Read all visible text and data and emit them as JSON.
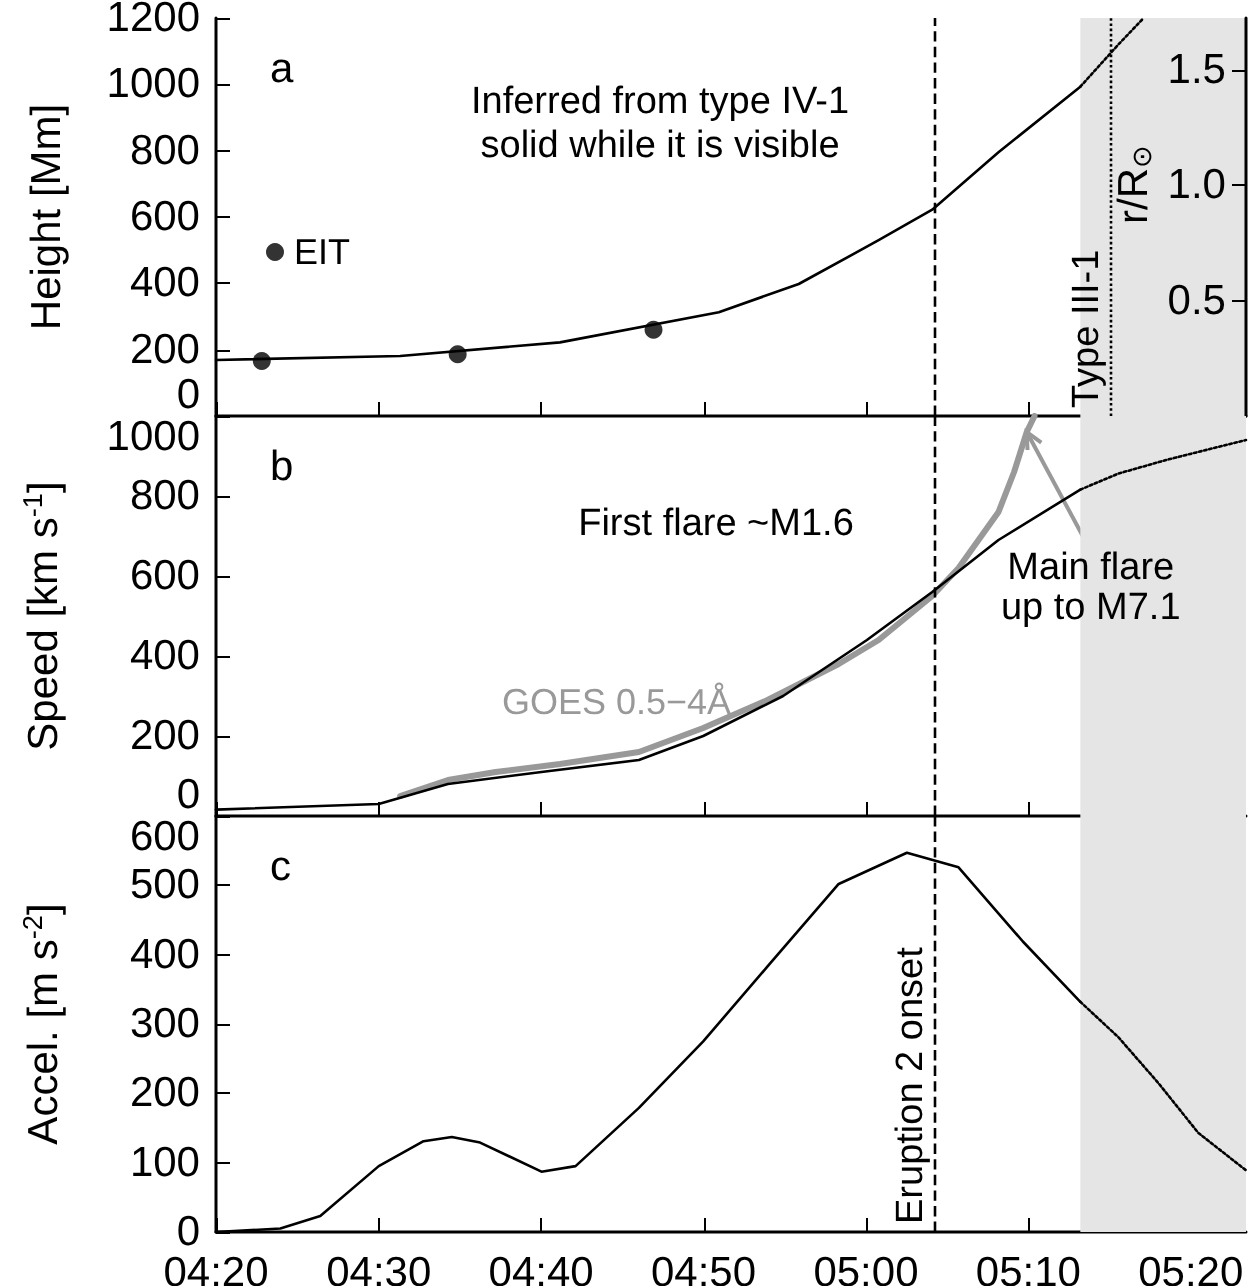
{
  "chart_data": [
    {
      "type": "line",
      "title": "a",
      "ylabel": "Height [Mm]",
      "y2label": "r/R$_{⊙}$",
      "annotations": [
        "Inferred from type IV-1\nsolid while it is visible"
      ],
      "xlim": [
        4.333,
        5.39
      ],
      "xticks": [
        {
          "value": 4.333,
          "label": null
        },
        {
          "value": 4.5,
          "label": null
        },
        {
          "value": 4.6667,
          "label": null
        },
        {
          "value": 4.8333,
          "label": null
        },
        {
          "value": 5,
          "label": null
        },
        {
          "value": 5.1667,
          "label": null
        },
        {
          "value": 5.3333,
          "label": null
        }
      ],
      "ylim": [
        0,
        1200
      ],
      "yticks": [
        0,
        200,
        400,
        600,
        800,
        1000,
        1200
      ],
      "y2lim": [
        0,
        1.725
      ],
      "y2ticks": [
        0.5,
        {
          "value": 1,
          "label": "1.0"
        },
        1.5
      ],
      "tick_labels": "y",
      "legend": "left",
      "grid": false,
      "bands": [
        {
          "axis": "x",
          "from": 5.22,
          "to": 5.39,
          "color": "#e5e5e5"
        }
      ],
      "ref_lines": [
        {
          "axis": "x",
          "value": 5.068,
          "line_style": "dashed"
        },
        {
          "axis": "x",
          "value": 5.252,
          "label": "Type III-1",
          "line_style": "dotted"
        }
      ],
      "series": [
        {
          "name": "EIT",
          "type": "scatter",
          "marker": "circle",
          "color": "#000000",
          "x": [
            4.38,
            4.581,
            4.782
          ],
          "values": [
            166,
            186,
            260
          ]
        },
        {
          "type": "line",
          "marker": "none",
          "line_style": "solid",
          "color": "#000000",
          "x": [
            4.333,
            4.522,
            4.686,
            4.849,
            4.931,
            5.013,
            5.068,
            5.136,
            5.22
          ],
          "values": [
            169,
            181,
            222,
            313,
            398,
            530,
            622,
            795,
            993
          ]
        },
        {
          "type": "line",
          "marker": "none",
          "line_style": "dotted",
          "color": "#000000",
          "x": [
            5.22,
            5.259,
            5.285
          ],
          "values": [
            993,
            1120,
            1200
          ]
        }
      ]
    },
    {
      "type": "line",
      "title": "b",
      "ylabel": "Speed [km s$^{-1}$]",
      "annotations": [
        "First flare ~M1.6",
        {
          "text": "Main flare\nup to M7.1",
          "x": 5.165,
          "y": 960
        }
      ],
      "xlim": [
        4.333,
        5.39
      ],
      "xticks": [
        {
          "value": 4.333,
          "label": null
        },
        {
          "value": 4.5,
          "label": null
        },
        {
          "value": 4.6667,
          "label": null
        },
        {
          "value": 4.8333,
          "label": null
        },
        {
          "value": 5,
          "label": null
        },
        {
          "value": 5.1667,
          "label": null
        },
        {
          "value": 5.3333,
          "label": null
        }
      ],
      "ylim": [
        0,
        1000
      ],
      "yticks": [
        0,
        200,
        400,
        600,
        800,
        1000
      ],
      "tick_labels": "y",
      "legend": "bottom left",
      "grid": false,
      "bands": [
        {
          "axis": "x",
          "from": 5.22,
          "to": 5.39,
          "color": "#e5e5e5"
        }
      ],
      "ref_lines": [
        {
          "axis": "x",
          "value": 5.068,
          "line_style": "dashed"
        }
      ],
      "series": [
        {
          "name": "GOES 0.5−4Å",
          "type": "line",
          "marker": "none",
          "line_style": "solid",
          "color": "#999999",
          "x": [
            4.522,
            4.571,
            4.62,
            4.686,
            4.767,
            4.833,
            4.899,
            4.972,
            5.013,
            5.068,
            5.095,
            5.136,
            5.152,
            5.165,
            5.173
          ],
          "values": [
            50,
            90,
            110,
            130,
            160,
            220,
            290,
            380,
            440,
            550,
            620,
            760,
            860,
            960,
            1000
          ]
        },
        {
          "type": "line",
          "marker": "none",
          "line_style": "solid",
          "color": "#000000",
          "x": [
            4.333,
            4.5,
            4.571,
            4.667,
            4.767,
            4.833,
            4.915,
            5.001,
            5.068,
            5.136,
            5.22
          ],
          "values": [
            16,
            30,
            80,
            110,
            140,
            200,
            300,
            440,
            560,
            690,
            816
          ]
        },
        {
          "type": "line",
          "marker": "none",
          "line_style": "dotted",
          "color": "#000000",
          "x": [
            5.22,
            5.259,
            5.308,
            5.39
          ],
          "values": [
            816,
            856,
            890,
            940
          ]
        }
      ]
    },
    {
      "type": "line",
      "title": "c",
      "ylabel": "Accel. [m s$^{-2}$]",
      "xlim": [
        4.333,
        5.39
      ],
      "xticks": [
        {
          "value": 4.333,
          "label": "04:20"
        },
        {
          "value": 4.5,
          "label": "04:30"
        },
        {
          "value": 4.6667,
          "label": "04:40"
        },
        {
          "value": 4.8333,
          "label": "04:50"
        },
        {
          "value": 5,
          "label": "05:00"
        },
        {
          "value": 5.1667,
          "label": "05:10"
        },
        {
          "value": 5.3333,
          "label": "05:20"
        }
      ],
      "ylim": [
        0,
        600
      ],
      "yticks": [
        0,
        100,
        200,
        300,
        400,
        500,
        600
      ],
      "grid": false,
      "bands": [
        {
          "axis": "x",
          "from": 5.22,
          "to": 5.39,
          "color": "#e5e5e5"
        }
      ],
      "ref_lines": [
        {
          "axis": "x",
          "value": 5.068,
          "label": "Eruption 2 onset",
          "line_style": "dashed"
        }
      ],
      "series": [
        {
          "type": "line",
          "marker": "none",
          "line_style": "solid",
          "color": "#000000",
          "x": [
            4.333,
            4.399,
            4.44,
            4.5,
            4.546,
            4.575,
            4.604,
            4.667,
            4.702,
            4.767,
            4.833,
            4.899,
            4.972,
            5.042,
            5.095,
            5.161,
            5.22
          ],
          "values": [
            0,
            5,
            23,
            95,
            131,
            137,
            129,
            87,
            95,
            179,
            275,
            383,
            502,
            547,
            526,
            419,
            332
          ]
        },
        {
          "type": "line",
          "marker": "none",
          "line_style": "dotted",
          "color": "#000000",
          "x": [
            5.22,
            5.259,
            5.3,
            5.341,
            5.39
          ],
          "values": [
            332,
            281,
            215,
            143,
            89
          ]
        }
      ]
    }
  ]
}
